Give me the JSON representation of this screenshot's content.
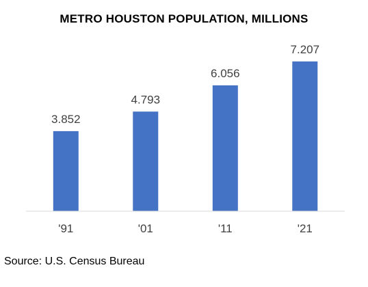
{
  "chart_data": {
    "type": "bar",
    "title": "METRO HOUSTON POPULATION, MILLIONS",
    "categories": [
      "'91",
      "'01",
      "'11",
      "'21"
    ],
    "values": [
      3.852,
      4.793,
      6.056,
      7.207
    ],
    "value_labels": [
      "3.852",
      "4.793",
      "6.056",
      "7.207"
    ],
    "ylim": [
      0,
      7.5
    ],
    "grid": false,
    "legend": "none",
    "bar_color": "#4472C4",
    "axis_color": "#D9D9D9"
  },
  "source": "Source: U.S. Census Bureau"
}
